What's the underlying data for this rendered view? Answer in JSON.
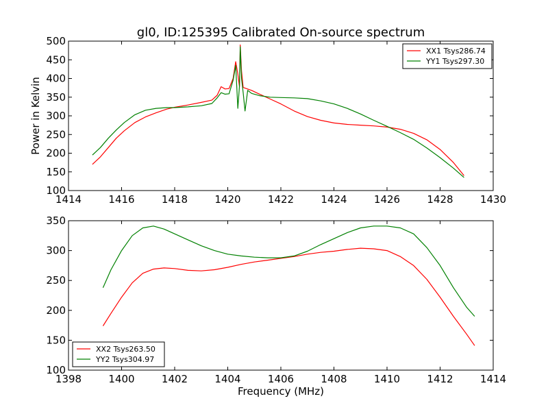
{
  "title": "gl0, ID:125395 Calibrated On-source spectrum",
  "chart_data": [
    {
      "type": "line",
      "title": "gl0, ID:125395 Calibrated On-source spectrum",
      "xlabel": "",
      "ylabel": "Power in Kelvin",
      "xlim": [
        1414,
        1430
      ],
      "ylim": [
        100,
        500
      ],
      "xticks": [
        "1414",
        "1416",
        "1418",
        "1420",
        "1422",
        "1424",
        "1426",
        "1428",
        "1430"
      ],
      "yticks": [
        "100",
        "150",
        "200",
        "250",
        "300",
        "350",
        "400",
        "450",
        "500"
      ],
      "legend_position": "top-right",
      "series": [
        {
          "name": "XX1 Tsys286.74",
          "color": "#ff0000",
          "points": [
            [
              1414.9,
              170
            ],
            [
              1415.2,
              190
            ],
            [
              1415.5,
              215
            ],
            [
              1415.8,
              240
            ],
            [
              1416.1,
              260
            ],
            [
              1416.5,
              282
            ],
            [
              1416.9,
              297
            ],
            [
              1417.3,
              308
            ],
            [
              1417.7,
              318
            ],
            [
              1418.0,
              323
            ],
            [
              1418.5,
              329
            ],
            [
              1419.0,
              336
            ],
            [
              1419.4,
              342
            ],
            [
              1419.6,
              355
            ],
            [
              1419.75,
              378
            ],
            [
              1419.9,
              372
            ],
            [
              1420.05,
              373
            ],
            [
              1420.2,
              400
            ],
            [
              1420.3,
              445
            ],
            [
              1420.38,
              412
            ],
            [
              1420.44,
              378
            ],
            [
              1420.47,
              490
            ],
            [
              1420.52,
              420
            ],
            [
              1420.58,
              376
            ],
            [
              1420.7,
              373
            ],
            [
              1420.9,
              368
            ],
            [
              1421.2,
              358
            ],
            [
              1421.6,
              345
            ],
            [
              1422.0,
              332
            ],
            [
              1422.5,
              313
            ],
            [
              1423.0,
              298
            ],
            [
              1423.5,
              288
            ],
            [
              1424.0,
              281
            ],
            [
              1424.5,
              277
            ],
            [
              1425.0,
              275
            ],
            [
              1425.5,
              273
            ],
            [
              1426.0,
              270
            ],
            [
              1426.5,
              264
            ],
            [
              1427.0,
              253
            ],
            [
              1427.5,
              236
            ],
            [
              1428.0,
              210
            ],
            [
              1428.5,
              175
            ],
            [
              1428.9,
              140
            ]
          ]
        },
        {
          "name": "YY1 Tsys297.30",
          "color": "#008000",
          "points": [
            [
              1414.9,
              195
            ],
            [
              1415.2,
              215
            ],
            [
              1415.5,
              240
            ],
            [
              1415.8,
              262
            ],
            [
              1416.1,
              282
            ],
            [
              1416.5,
              303
            ],
            [
              1416.9,
              315
            ],
            [
              1417.3,
              320
            ],
            [
              1417.7,
              322
            ],
            [
              1418.0,
              322
            ],
            [
              1418.5,
              324
            ],
            [
              1419.0,
              327
            ],
            [
              1419.4,
              333
            ],
            [
              1419.6,
              348
            ],
            [
              1419.75,
              362
            ],
            [
              1419.9,
              358
            ],
            [
              1420.05,
              359
            ],
            [
              1420.2,
              395
            ],
            [
              1420.3,
              435
            ],
            [
              1420.38,
              320
            ],
            [
              1420.44,
              380
            ],
            [
              1420.47,
              485
            ],
            [
              1420.52,
              400
            ],
            [
              1420.58,
              362
            ],
            [
              1420.65,
              313
            ],
            [
              1420.75,
              368
            ],
            [
              1420.9,
              360
            ],
            [
              1421.2,
              354
            ],
            [
              1421.6,
              350
            ],
            [
              1422.0,
              349
            ],
            [
              1422.5,
              348
            ],
            [
              1423.0,
              346
            ],
            [
              1423.5,
              340
            ],
            [
              1424.0,
              332
            ],
            [
              1424.5,
              320
            ],
            [
              1425.0,
              305
            ],
            [
              1425.5,
              288
            ],
            [
              1426.0,
              272
            ],
            [
              1426.5,
              255
            ],
            [
              1427.0,
              237
            ],
            [
              1427.5,
              214
            ],
            [
              1428.0,
              188
            ],
            [
              1428.5,
              160
            ],
            [
              1428.9,
              135
            ]
          ]
        }
      ]
    },
    {
      "type": "line",
      "title": "",
      "xlabel": "Frequency (MHz)",
      "ylabel": "",
      "xlim": [
        1398,
        1414
      ],
      "ylim": [
        100,
        350
      ],
      "xticks": [
        "1398",
        "1400",
        "1402",
        "1404",
        "1406",
        "1408",
        "1410",
        "1412",
        "1414"
      ],
      "yticks": [
        "100",
        "150",
        "200",
        "250",
        "300",
        "350"
      ],
      "legend_position": "bottom-left",
      "series": [
        {
          "name": "XX2 Tsys263.50",
          "color": "#ff0000",
          "points": [
            [
              1399.3,
              174
            ],
            [
              1399.6,
              195
            ],
            [
              1400.0,
              222
            ],
            [
              1400.4,
              246
            ],
            [
              1400.8,
              262
            ],
            [
              1401.2,
              269
            ],
            [
              1401.6,
              271
            ],
            [
              1402.0,
              270
            ],
            [
              1402.5,
              267
            ],
            [
              1403.0,
              266
            ],
            [
              1403.5,
              268
            ],
            [
              1404.0,
              272
            ],
            [
              1404.5,
              277
            ],
            [
              1405.0,
              281
            ],
            [
              1405.5,
              284
            ],
            [
              1406.0,
              287
            ],
            [
              1406.5,
              290
            ],
            [
              1407.0,
              294
            ],
            [
              1407.5,
              297
            ],
            [
              1408.0,
              299
            ],
            [
              1408.5,
              302
            ],
            [
              1409.0,
              304
            ],
            [
              1409.5,
              303
            ],
            [
              1410.0,
              300
            ],
            [
              1410.5,
              290
            ],
            [
              1411.0,
              275
            ],
            [
              1411.5,
              252
            ],
            [
              1412.0,
              222
            ],
            [
              1412.5,
              190
            ],
            [
              1413.0,
              160
            ],
            [
              1413.3,
              141
            ]
          ]
        },
        {
          "name": "YY2 Tsys304.97",
          "color": "#008000",
          "points": [
            [
              1399.3,
              238
            ],
            [
              1399.6,
              268
            ],
            [
              1400.0,
              300
            ],
            [
              1400.4,
              325
            ],
            [
              1400.8,
              338
            ],
            [
              1401.2,
              341
            ],
            [
              1401.6,
              336
            ],
            [
              1402.0,
              328
            ],
            [
              1402.5,
              318
            ],
            [
              1403.0,
              308
            ],
            [
              1403.5,
              300
            ],
            [
              1404.0,
              294
            ],
            [
              1404.5,
              291
            ],
            [
              1405.0,
              289
            ],
            [
              1405.5,
              288
            ],
            [
              1406.0,
              288
            ],
            [
              1406.5,
              291
            ],
            [
              1407.0,
              299
            ],
            [
              1407.5,
              310
            ],
            [
              1408.0,
              320
            ],
            [
              1408.5,
              330
            ],
            [
              1409.0,
              338
            ],
            [
              1409.5,
              341
            ],
            [
              1410.0,
              341
            ],
            [
              1410.5,
              338
            ],
            [
              1411.0,
              328
            ],
            [
              1411.5,
              305
            ],
            [
              1412.0,
              275
            ],
            [
              1412.5,
              238
            ],
            [
              1413.0,
              205
            ],
            [
              1413.3,
              190
            ]
          ]
        }
      ]
    }
  ]
}
